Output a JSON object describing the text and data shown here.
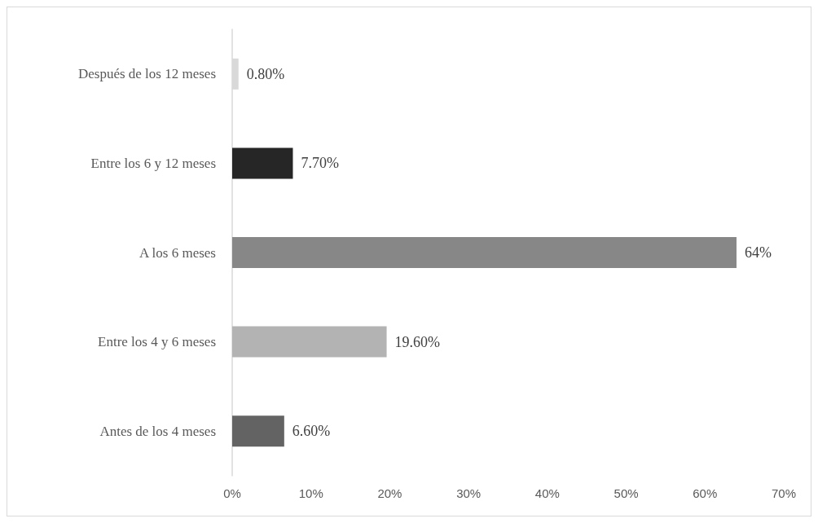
{
  "chart_data": {
    "type": "bar",
    "orientation": "horizontal",
    "categories": [
      "Después de los 12 meses",
      "Entre los 6 y 12 meses",
      "A los 6 meses",
      "Entre los 4 y 6 meses",
      "Antes de los 4 meses"
    ],
    "values": [
      0.8,
      7.7,
      64,
      19.6,
      6.6
    ],
    "colors": [
      "#d9d9d9",
      "#262626",
      "#878787",
      "#b3b3b3",
      "#636363"
    ],
    "value_labels": [
      "0.80%",
      "7.70%",
      "64%",
      "19.60%",
      "6.60%"
    ],
    "xlim": [
      0,
      70
    ],
    "xticks": [
      {
        "value": 0,
        "label": "0%"
      },
      {
        "value": 10,
        "label": "10%"
      },
      {
        "value": 20,
        "label": "20%"
      },
      {
        "value": 30,
        "label": "30%"
      },
      {
        "value": 40,
        "label": "40%"
      },
      {
        "value": 50,
        "label": "50%"
      },
      {
        "value": 60,
        "label": "60%"
      },
      {
        "value": 70,
        "label": "70%"
      }
    ]
  }
}
